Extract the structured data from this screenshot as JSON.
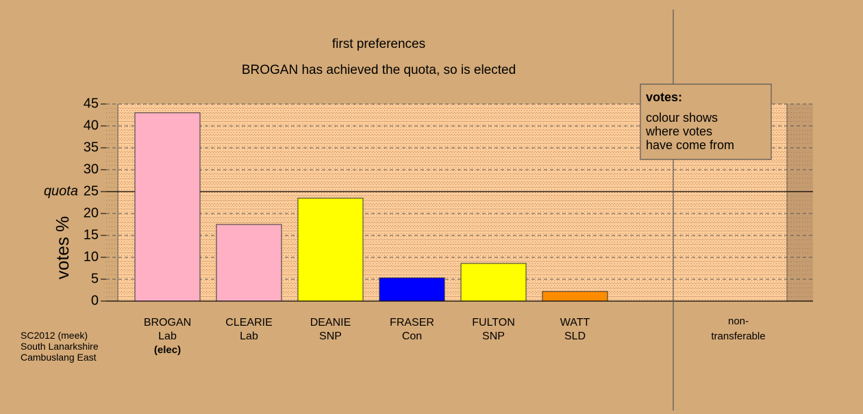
{
  "chart_data": {
    "type": "bar",
    "title": "first preferences",
    "subtitle": "BROGAN has achieved the quota, so is elected",
    "ylabel": "votes %",
    "ylim": [
      0,
      45
    ],
    "yticks": [
      0,
      5,
      10,
      15,
      20,
      25,
      30,
      35,
      40,
      45
    ],
    "quota": {
      "label": "quota",
      "value": 25
    },
    "categories": [
      {
        "name": "BROGAN",
        "party": "Lab",
        "status": "(elec)",
        "value": 43.0,
        "color": "#ffb0c4"
      },
      {
        "name": "CLEARIE",
        "party": "Lab",
        "status": "",
        "value": 17.5,
        "color": "#ffb0c4"
      },
      {
        "name": "DEANIE",
        "party": "SNP",
        "status": "",
        "value": 23.5,
        "color": "#ffff00"
      },
      {
        "name": "FRASER",
        "party": "Con",
        "status": "",
        "value": 5.3,
        "color": "#0000ff"
      },
      {
        "name": "FULTON",
        "party": "SNP",
        "status": "",
        "value": 8.6,
        "color": "#ffff00"
      },
      {
        "name": "WATT",
        "party": "SLD",
        "status": "",
        "value": 2.2,
        "color": "#ff8c00"
      }
    ],
    "nontransferable": {
      "line1": "non-",
      "line2": "transferable",
      "value": 0
    },
    "legend": {
      "title": "votes:",
      "lines": [
        "colour shows",
        "where votes",
        "have come from"
      ],
      "placement": "top-right"
    },
    "grid": true
  },
  "source": {
    "line1": "SC2012 (meek)",
    "line2": "South Lanarkshire",
    "line3": "Cambuslang East"
  },
  "colors": {
    "background": "#d4aa78",
    "plot_fill": "#ffcc99",
    "plot_fill_dark": "#d9ad82"
  }
}
